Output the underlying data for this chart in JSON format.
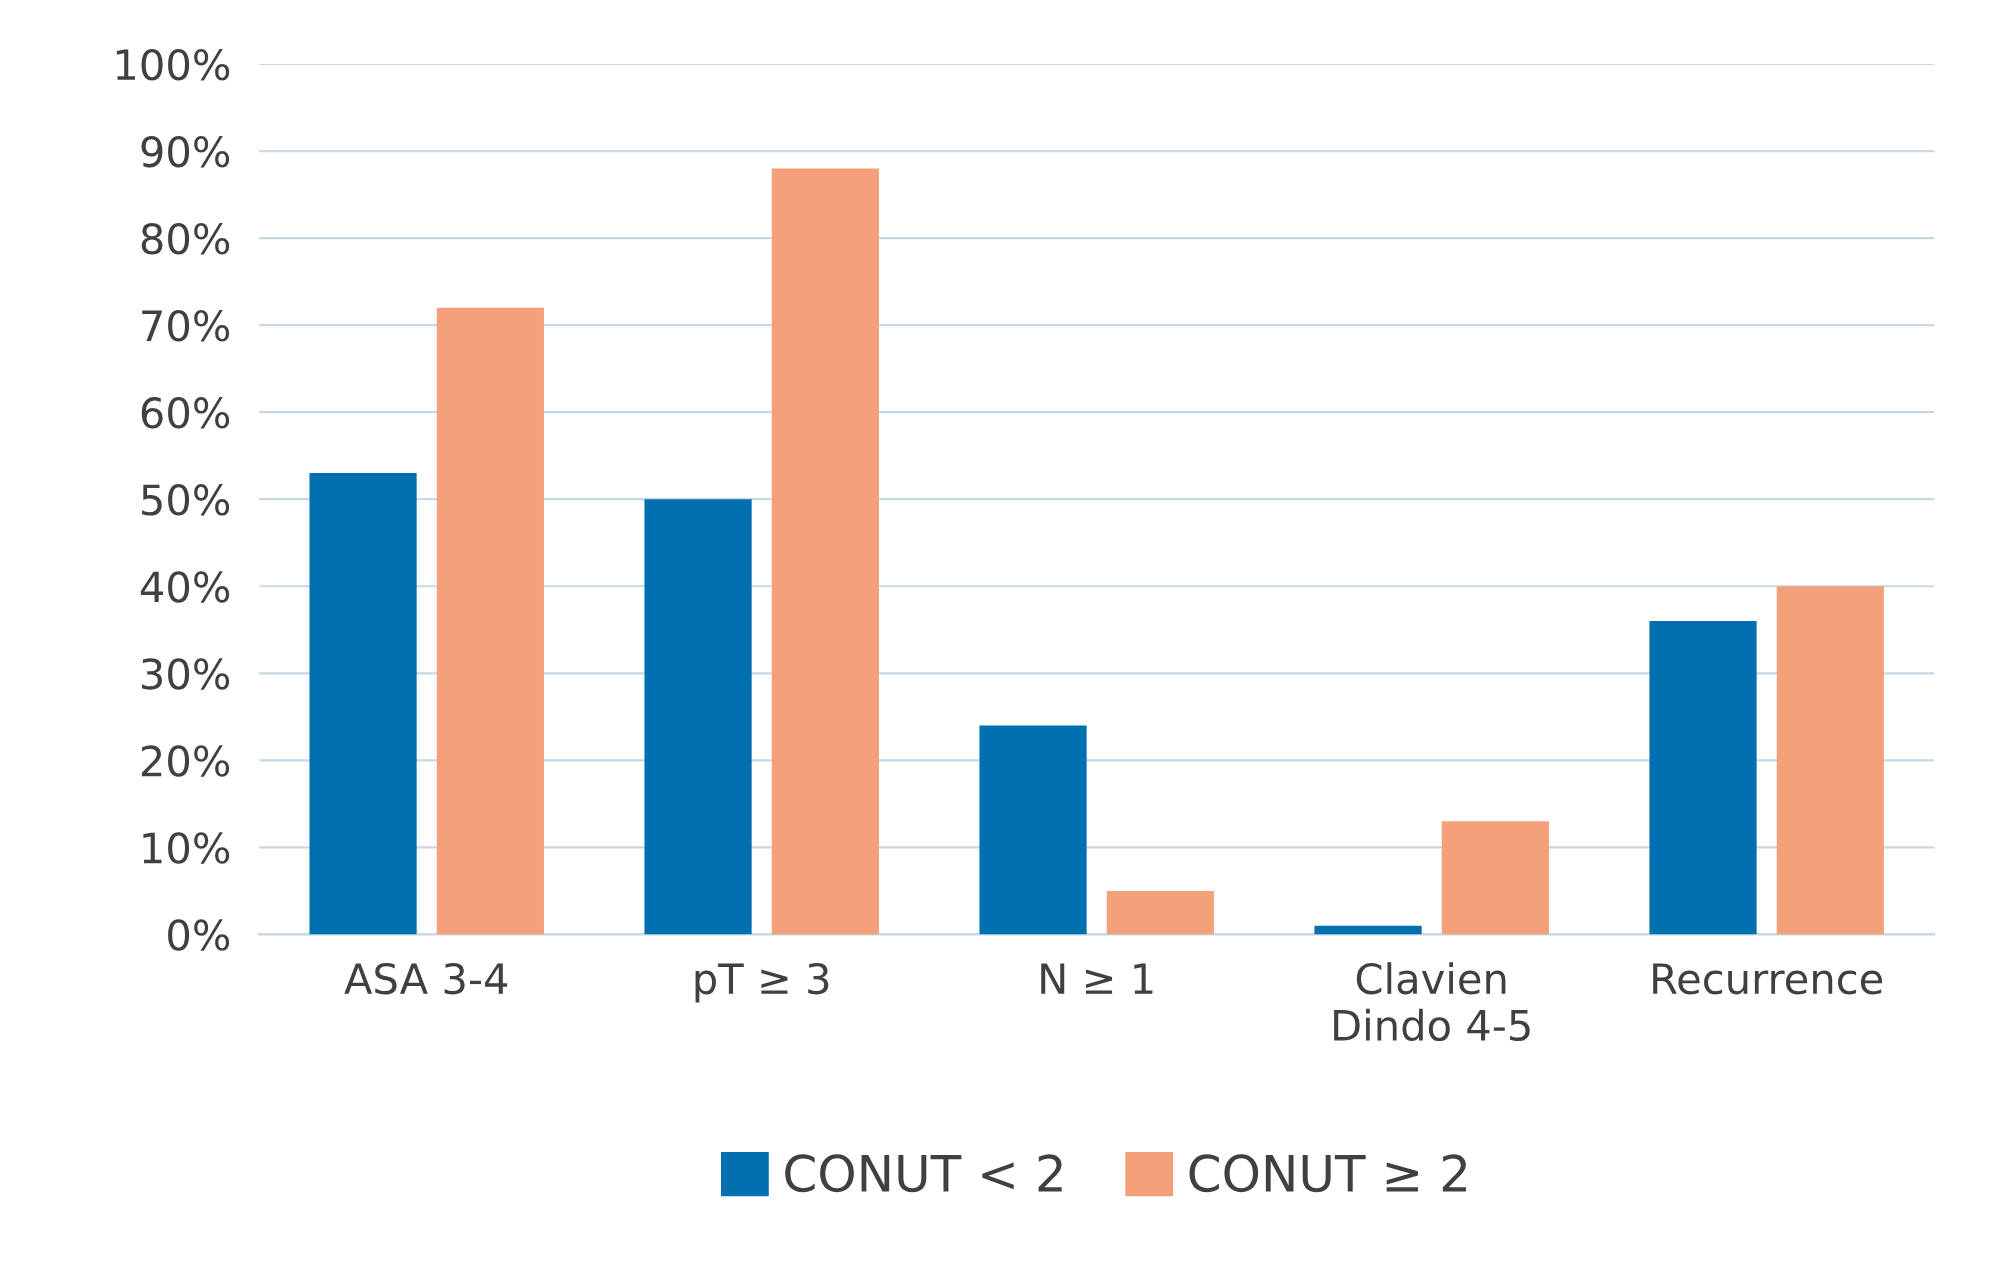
{
  "chart_data": {
    "type": "bar",
    "categories": [
      "ASA 3-4",
      "pT ≥ 3",
      "N ≥ 1",
      "Clavien\nDindo 4-5",
      "Recurrence"
    ],
    "series": [
      {
        "name": "CONUT < 2",
        "color": "#0070b0",
        "values": [
          53,
          50,
          24,
          1,
          36
        ]
      },
      {
        "name": "CONUT ≥ 2",
        "color": "#f4a07a",
        "values": [
          72,
          88,
          5,
          13,
          40
        ]
      }
    ],
    "ylim": [
      0,
      100
    ],
    "yticks": [
      {
        "value": 0,
        "label": "0%"
      },
      {
        "value": 10,
        "label": "10%"
      },
      {
        "value": 20,
        "label": "20%"
      },
      {
        "value": 30,
        "label": "30%"
      },
      {
        "value": 40,
        "label": "40%"
      },
      {
        "value": 50,
        "label": "50%"
      },
      {
        "value": 60,
        "label": "60%"
      },
      {
        "value": 70,
        "label": "70%"
      },
      {
        "value": 80,
        "label": "80%"
      },
      {
        "value": 90,
        "label": "90%"
      },
      {
        "value": 100,
        "label": "100%"
      }
    ],
    "grid": "y",
    "legend": "bottom"
  }
}
